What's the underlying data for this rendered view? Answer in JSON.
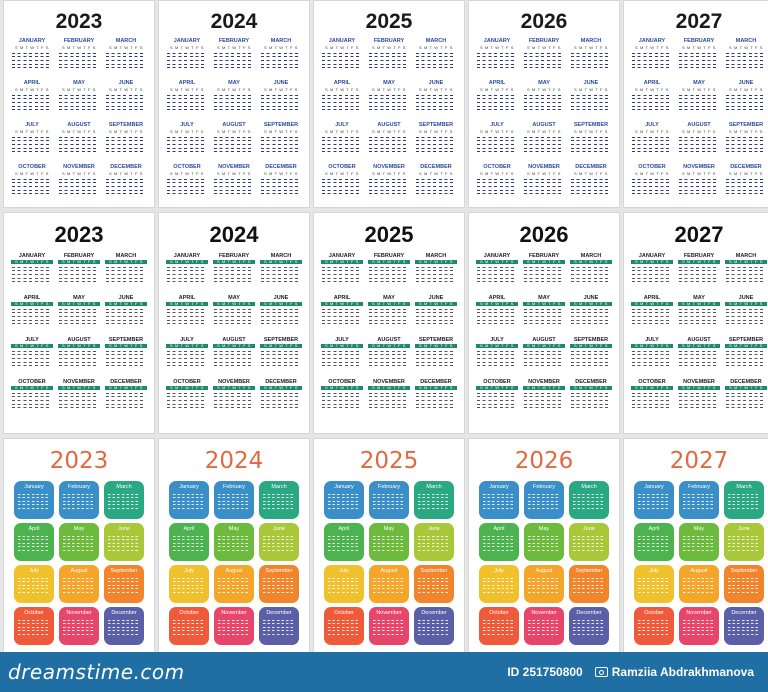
{
  "years": [
    "2023",
    "2024",
    "2025",
    "2026",
    "2027"
  ],
  "months_upper": [
    "JANUARY",
    "FEBRUARY",
    "MARCH",
    "APRIL",
    "MAY",
    "JUNE",
    "JULY",
    "AUGUST",
    "SEPTEMBER",
    "OCTOBER",
    "NOVEMBER",
    "DECEMBER"
  ],
  "months_title": [
    "January",
    "February",
    "March",
    "April",
    "May",
    "June",
    "July",
    "August",
    "September",
    "October",
    "November",
    "December"
  ],
  "weekday_header": "S M T W T F S",
  "colors": {
    "year_style3": "#e06a3f",
    "header_band_style2": "#1e8a6a",
    "tiles": [
      "#3a8fc8",
      "#3a8fc8",
      "#2aa882",
      "#4cb34f",
      "#6cbb3c",
      "#a8c83a",
      "#f0c12c",
      "#f5a52a",
      "#f2852c",
      "#ee5a3a",
      "#e8456a",
      "#5a5fa8"
    ]
  },
  "footer": {
    "brand": "dreamstime.com",
    "id_text": "ID 251750800",
    "author": "Ramziia Abdrakhmanova"
  }
}
